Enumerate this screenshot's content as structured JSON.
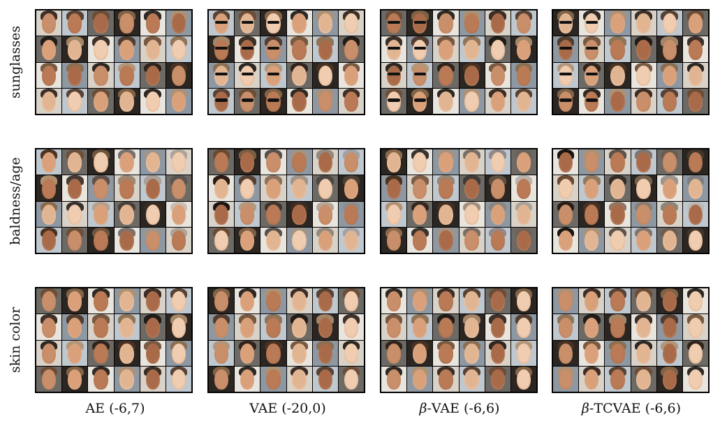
{
  "rows": [
    {
      "label": "sunglasses",
      "name": "sunglasses"
    },
    {
      "label": "baldness/age",
      "name": "baldness-age"
    },
    {
      "label": "skin color",
      "name": "skin-color"
    }
  ],
  "columns": [
    {
      "label_prefix": "",
      "label_suffix": "AE (-6,7)",
      "name": "ae"
    },
    {
      "label_prefix": "",
      "label_suffix": "VAE (-20,0)",
      "name": "vae"
    },
    {
      "label_prefix": "β",
      "label_suffix": "-VAE (-6,6)",
      "name": "beta-vae"
    },
    {
      "label_prefix": "β",
      "label_suffix": "-TCVAE (-6,6)",
      "name": "beta-tcvae"
    }
  ],
  "grid": {
    "rows_per_panel": 4,
    "cols_per_panel": 6
  },
  "palette": {
    "backgrounds": [
      "#d9d2c8",
      "#bfc7cf",
      "#6d6a66",
      "#2b2622",
      "#e8e4de",
      "#8e98a2"
    ],
    "skin": [
      "#c98f6a",
      "#d9a07a",
      "#b97a55",
      "#e2b592",
      "#a86a48",
      "#f0cdb0"
    ],
    "hair": [
      "#2a1c14",
      "#4b3323",
      "#6b4a32",
      "#8a6a4a",
      "#1a1410",
      "#b09070"
    ]
  }
}
